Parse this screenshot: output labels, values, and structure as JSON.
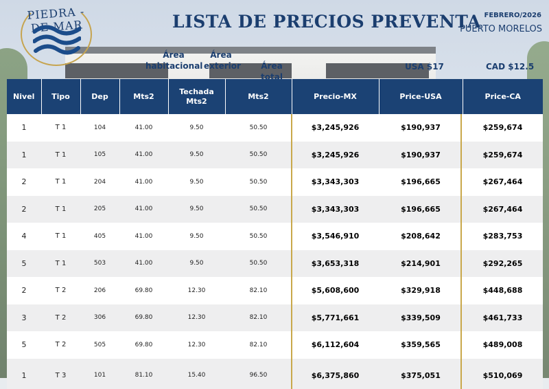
{
  "brand": {
    "logo_text": "PIEDRA - DE MAR"
  },
  "header": {
    "title": "LISTA DE PRECIOS PREVENTA",
    "date": "FEBRERO/2026",
    "location": "PUERTO MORELOS"
  },
  "groups": {
    "area_habitacional": "Área habitacional",
    "area_exterior": "Área exterior",
    "area_total": "Área total",
    "usa_rate": "USA $17",
    "cad_rate": "CAD $12.5"
  },
  "table": {
    "columns": [
      "Nivel",
      "Tipo",
      "Dep",
      "Mts2",
      "Techada Mts2",
      "Mts2",
      "Precio-MX",
      "Price-USA",
      "Price-CA"
    ],
    "rows": [
      [
        "1",
        "T 1",
        "104",
        "41.00",
        "9.50",
        "50.50",
        "$3,245,926",
        "$190,937",
        "$259,674"
      ],
      [
        "1",
        "T 1",
        "105",
        "41.00",
        "9.50",
        "50.50",
        "$3,245,926",
        "$190,937",
        "$259,674"
      ],
      [
        "2",
        "T 1",
        "204",
        "41.00",
        "9.50",
        "50.50",
        "$3,343,303",
        "$196,665",
        "$267,464"
      ],
      [
        "2",
        "T 1",
        "205",
        "41.00",
        "9.50",
        "50.50",
        "$3,343,303",
        "$196,665",
        "$267,464"
      ],
      [
        "4",
        "T 1",
        "405",
        "41.00",
        "9.50",
        "50.50",
        "$3,546,910",
        "$208,642",
        "$283,753"
      ],
      [
        "5",
        "T 1",
        "503",
        "41.00",
        "9.50",
        "50.50",
        "$3,653,318",
        "$214,901",
        "$292,265"
      ],
      [
        "2",
        "T 2",
        "206",
        "69.80",
        "12.30",
        "82.10",
        "$5,608,600",
        "$329,918",
        "$448,688"
      ],
      [
        "3",
        "T 2",
        "306",
        "69.80",
        "12.30",
        "82.10",
        "$5,771,661",
        "$339,509",
        "$461,733"
      ],
      [
        "5",
        "T 2",
        "505",
        "69.80",
        "12.30",
        "82.10",
        "$6,112,604",
        "$359,565",
        "$489,008"
      ],
      [
        "1",
        "T 3",
        "101",
        "81.10",
        "15.40",
        "96.50",
        "$6,375,860",
        "$375,051",
        "$510,069"
      ]
    ]
  },
  "colors": {
    "navy": "#1b4274",
    "gold": "#c9a84a",
    "title": "#1b3e6f"
  }
}
